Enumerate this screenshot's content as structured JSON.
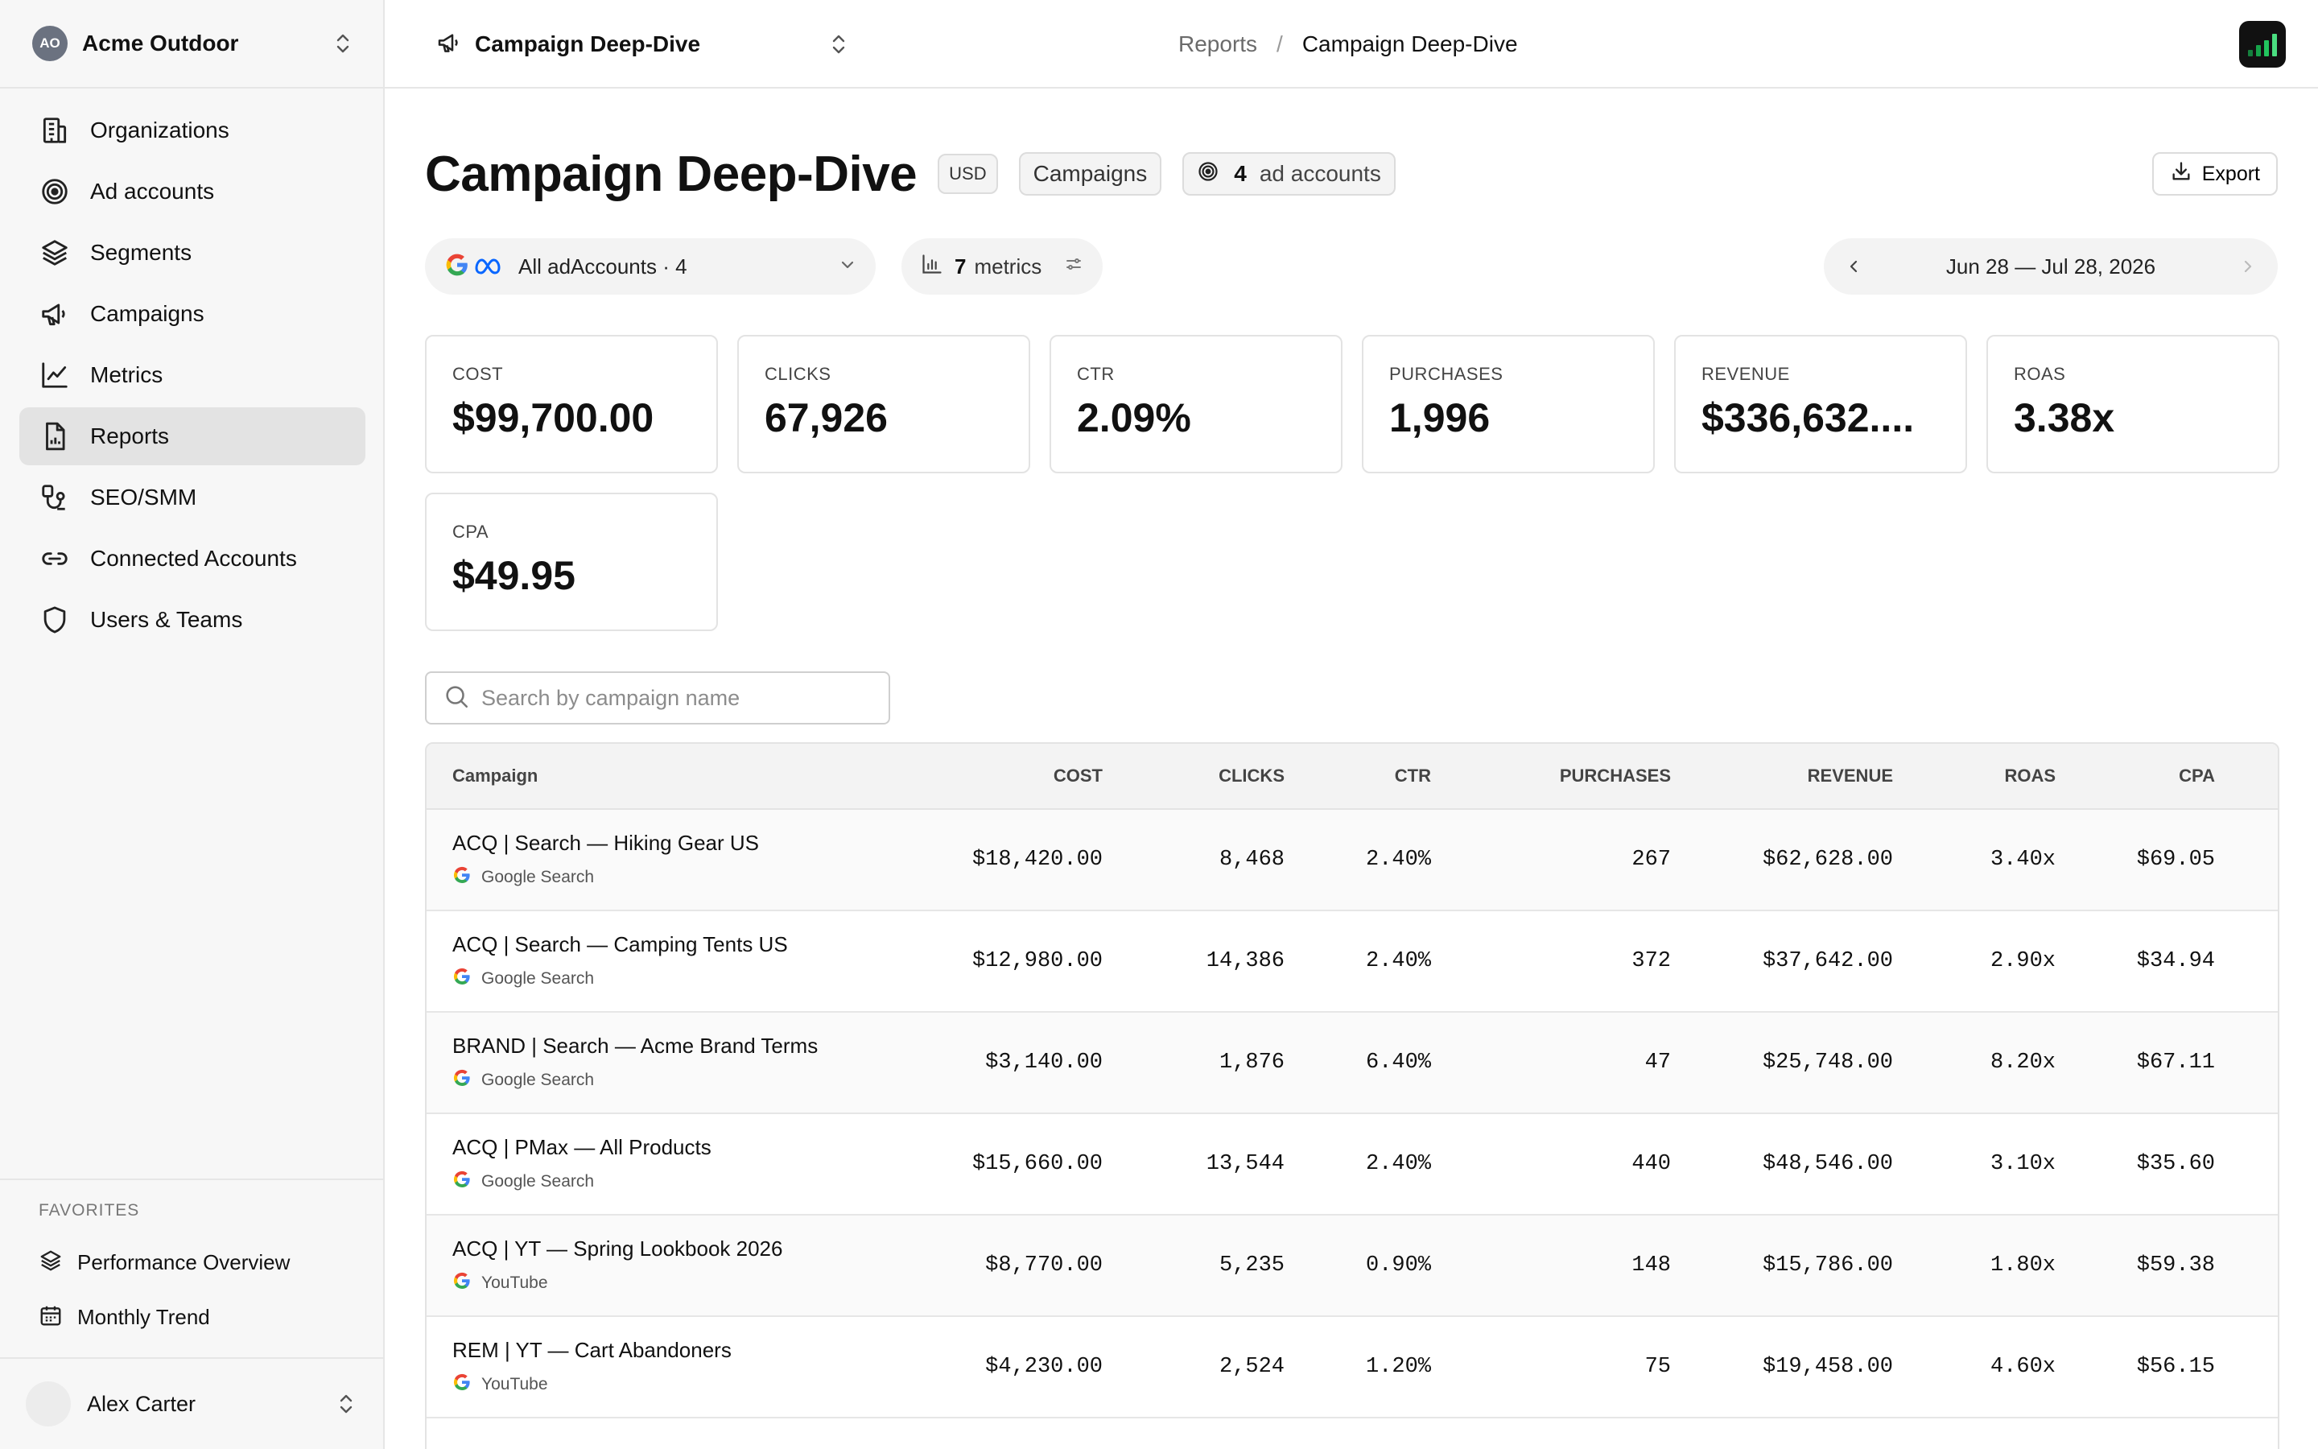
{
  "org": {
    "initials": "AO",
    "name": "Acme Outdoor"
  },
  "nav": [
    {
      "label": "Organizations",
      "icon": "building-icon"
    },
    {
      "label": "Ad accounts",
      "icon": "target-icon"
    },
    {
      "label": "Segments",
      "icon": "layers-icon"
    },
    {
      "label": "Campaigns",
      "icon": "megaphone-icon"
    },
    {
      "label": "Metrics",
      "icon": "line-chart-icon"
    },
    {
      "label": "Reports",
      "icon": "report-icon",
      "active": true
    },
    {
      "label": "SEO/SMM",
      "icon": "seo-icon"
    },
    {
      "label": "Connected Accounts",
      "icon": "link-icon"
    },
    {
      "label": "Users & Teams",
      "icon": "shield-icon"
    }
  ],
  "favorites": {
    "title": "FAVORITES",
    "items": [
      {
        "label": "Performance Overview",
        "icon": "layers-icon"
      },
      {
        "label": "Monthly Trend",
        "icon": "calendar-icon"
      }
    ]
  },
  "user": {
    "name": "Alex Carter"
  },
  "topbar": {
    "report_name": "Campaign Deep-Dive",
    "breadcrumb": {
      "parent": "Reports",
      "separator": "/",
      "current": "Campaign Deep-Dive"
    }
  },
  "header": {
    "title": "Campaign Deep-Dive",
    "currency_tag": "USD",
    "level_tag": "Campaigns",
    "accounts_count": "4",
    "accounts_label": "ad accounts",
    "export_label": "Export"
  },
  "filters": {
    "accounts_label": "All adAccounts · 4",
    "metrics_count": "7",
    "metrics_label": "metrics",
    "date_range": "Jun 28 — Jul 28, 2026"
  },
  "kpis": [
    {
      "label": "COST",
      "value": "$99,700.00"
    },
    {
      "label": "CLICKS",
      "value": "67,926"
    },
    {
      "label": "CTR",
      "value": "2.09%"
    },
    {
      "label": "PURCHASES",
      "value": "1,996"
    },
    {
      "label": "REVENUE",
      "value": "$336,632...."
    },
    {
      "label": "ROAS",
      "value": "3.38x"
    },
    {
      "label": "CPA",
      "value": "$49.95"
    }
  ],
  "search": {
    "placeholder": "Search by campaign name",
    "value": ""
  },
  "table": {
    "columns": [
      "Campaign",
      "COST",
      "CLICKS",
      "CTR",
      "PURCHASES",
      "REVENUE",
      "ROAS",
      "CPA"
    ],
    "rows": [
      {
        "name": "ACQ | Search — Hiking Gear US",
        "source": "Google Search",
        "cost": "$18,420.00",
        "clicks": "8,468",
        "ctr": "2.40%",
        "purchases": "267",
        "revenue": "$62,628.00",
        "roas": "3.40x",
        "cpa": "$69.05"
      },
      {
        "name": "ACQ | Search — Camping Tents US",
        "source": "Google Search",
        "cost": "$12,980.00",
        "clicks": "14,386",
        "ctr": "2.40%",
        "purchases": "372",
        "revenue": "$37,642.00",
        "roas": "2.90x",
        "cpa": "$34.94"
      },
      {
        "name": "BRAND | Search — Acme Brand Terms",
        "source": "Google Search",
        "cost": "$3,140.00",
        "clicks": "1,876",
        "ctr": "6.40%",
        "purchases": "47",
        "revenue": "$25,748.00",
        "roas": "8.20x",
        "cpa": "$67.11"
      },
      {
        "name": "ACQ | PMax — All Products",
        "source": "Google Search",
        "cost": "$15,660.00",
        "clicks": "13,544",
        "ctr": "2.40%",
        "purchases": "440",
        "revenue": "$48,546.00",
        "roas": "3.10x",
        "cpa": "$35.60"
      },
      {
        "name": "ACQ | YT — Spring Lookbook 2026",
        "source": "YouTube",
        "cost": "$8,770.00",
        "clicks": "5,235",
        "ctr": "0.90%",
        "purchases": "148",
        "revenue": "$15,786.00",
        "roas": "1.80x",
        "cpa": "$59.38"
      },
      {
        "name": "REM | YT — Cart Abandoners",
        "source": "YouTube",
        "cost": "$4,230.00",
        "clicks": "2,524",
        "ctr": "1.20%",
        "purchases": "75",
        "revenue": "$19,458.00",
        "roas": "4.60x",
        "cpa": "$56.15"
      }
    ]
  },
  "colors": {
    "accent_active": "#e3e3e3",
    "logo_bar": "#22c55e",
    "google_blue": "#4285F4",
    "meta_blue": "#0866FF"
  }
}
